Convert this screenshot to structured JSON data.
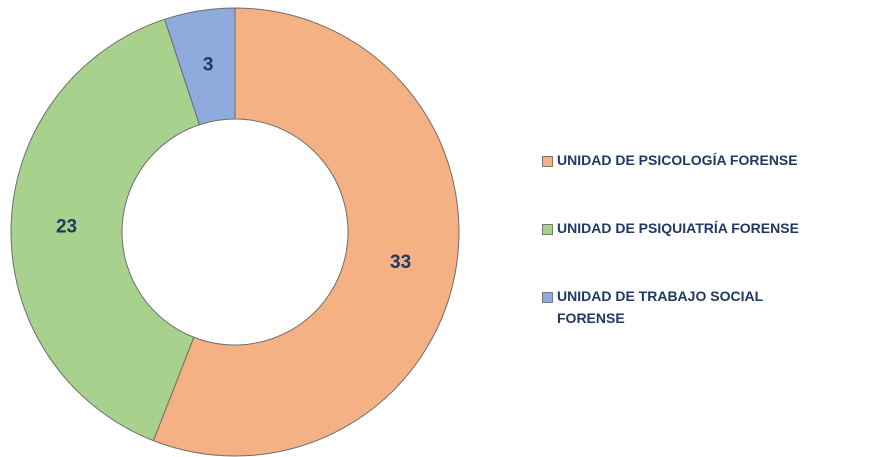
{
  "chart_data": {
    "type": "donut",
    "categories": [
      "UNIDAD DE PSICOLOGÍA FORENSE",
      "UNIDAD DE PSIQUIATRÍA FORENSE",
      "UNIDAD DE TRABAJO SOCIAL FORENSE"
    ],
    "values": [
      33,
      23,
      3
    ],
    "colors": [
      "#f4b183",
      "#a9d18e",
      "#8faadc"
    ],
    "legend": "right"
  }
}
